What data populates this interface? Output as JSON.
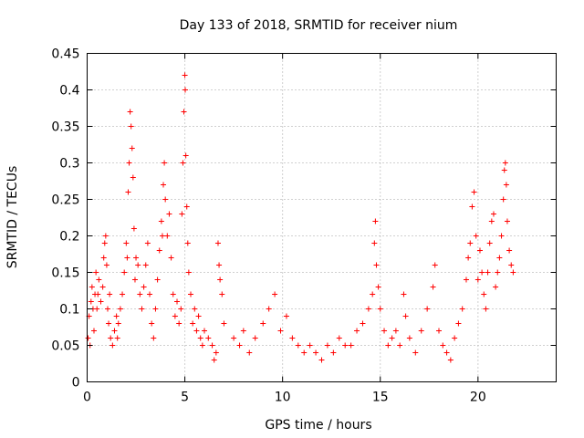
{
  "chart_data": {
    "type": "scatter",
    "title": "Day 133 of 2018, SRMTID for receiver nium",
    "xlabel": "GPS time / hours",
    "ylabel": "SRMTID / TECUs",
    "xlim": [
      0,
      24
    ],
    "ylim": [
      0,
      0.45
    ],
    "xticks": [
      0,
      5,
      10,
      15,
      20
    ],
    "xtick_labels": [
      "0",
      "5",
      "10",
      "15",
      "20"
    ],
    "yticks": [
      0,
      0.05,
      0.1,
      0.15,
      0.2,
      0.25,
      0.3,
      0.35,
      0.4,
      0.45
    ],
    "ytick_labels": [
      "0",
      "0.05",
      "0.1",
      "0.15",
      "0.2",
      "0.25",
      "0.3",
      "0.35",
      "0.4",
      "0.45"
    ],
    "grid": true,
    "marker": "+",
    "color": "#ff0000",
    "series": [
      {
        "name": "SRMTID",
        "points": [
          [
            0.05,
            0.06
          ],
          [
            0.1,
            0.09
          ],
          [
            0.15,
            0.05
          ],
          [
            0.2,
            0.11
          ],
          [
            0.25,
            0.13
          ],
          [
            0.3,
            0.1
          ],
          [
            0.35,
            0.07
          ],
          [
            0.4,
            0.12
          ],
          [
            0.45,
            0.15
          ],
          [
            0.5,
            0.1
          ],
          [
            0.55,
            0.12
          ],
          [
            0.6,
            0.14
          ],
          [
            0.7,
            0.11
          ],
          [
            0.8,
            0.13
          ],
          [
            0.85,
            0.17
          ],
          [
            0.9,
            0.19
          ],
          [
            0.95,
            0.2
          ],
          [
            1.0,
            0.16
          ],
          [
            1.05,
            0.1
          ],
          [
            1.1,
            0.08
          ],
          [
            1.15,
            0.12
          ],
          [
            1.2,
            0.06
          ],
          [
            1.3,
            0.05
          ],
          [
            1.4,
            0.07
          ],
          [
            1.5,
            0.09
          ],
          [
            1.55,
            0.06
          ],
          [
            1.6,
            0.08
          ],
          [
            1.7,
            0.1
          ],
          [
            1.8,
            0.12
          ],
          [
            1.9,
            0.15
          ],
          [
            2.0,
            0.19
          ],
          [
            2.05,
            0.17
          ],
          [
            2.1,
            0.26
          ],
          [
            2.15,
            0.3
          ],
          [
            2.2,
            0.37
          ],
          [
            2.25,
            0.35
          ],
          [
            2.3,
            0.32
          ],
          [
            2.35,
            0.28
          ],
          [
            2.4,
            0.21
          ],
          [
            2.45,
            0.14
          ],
          [
            2.5,
            0.17
          ],
          [
            2.6,
            0.16
          ],
          [
            2.7,
            0.12
          ],
          [
            2.8,
            0.1
          ],
          [
            2.9,
            0.13
          ],
          [
            3.0,
            0.16
          ],
          [
            3.1,
            0.19
          ],
          [
            3.2,
            0.12
          ],
          [
            3.3,
            0.08
          ],
          [
            3.4,
            0.06
          ],
          [
            3.5,
            0.1
          ],
          [
            3.6,
            0.14
          ],
          [
            3.7,
            0.18
          ],
          [
            3.8,
            0.22
          ],
          [
            3.85,
            0.2
          ],
          [
            3.9,
            0.27
          ],
          [
            3.95,
            0.3
          ],
          [
            4.0,
            0.25
          ],
          [
            4.1,
            0.2
          ],
          [
            4.2,
            0.23
          ],
          [
            4.3,
            0.17
          ],
          [
            4.4,
            0.12
          ],
          [
            4.5,
            0.09
          ],
          [
            4.6,
            0.11
          ],
          [
            4.7,
            0.08
          ],
          [
            4.8,
            0.1
          ],
          [
            4.85,
            0.23
          ],
          [
            4.9,
            0.3
          ],
          [
            4.95,
            0.37
          ],
          [
            5.0,
            0.42
          ],
          [
            5.02,
            0.4
          ],
          [
            5.05,
            0.31
          ],
          [
            5.1,
            0.24
          ],
          [
            5.15,
            0.19
          ],
          [
            5.2,
            0.15
          ],
          [
            5.3,
            0.12
          ],
          [
            5.4,
            0.08
          ],
          [
            5.5,
            0.1
          ],
          [
            5.6,
            0.07
          ],
          [
            5.7,
            0.09
          ],
          [
            5.8,
            0.06
          ],
          [
            5.9,
            0.05
          ],
          [
            6.0,
            0.07
          ],
          [
            6.2,
            0.06
          ],
          [
            6.4,
            0.05
          ],
          [
            6.5,
            0.03
          ],
          [
            6.6,
            0.04
          ],
          [
            6.7,
            0.19
          ],
          [
            6.75,
            0.16
          ],
          [
            6.8,
            0.14
          ],
          [
            6.9,
            0.12
          ],
          [
            7.0,
            0.08
          ],
          [
            7.5,
            0.06
          ],
          [
            7.8,
            0.05
          ],
          [
            8.0,
            0.07
          ],
          [
            8.3,
            0.04
          ],
          [
            8.6,
            0.06
          ],
          [
            9.0,
            0.08
          ],
          [
            9.3,
            0.1
          ],
          [
            9.6,
            0.12
          ],
          [
            9.9,
            0.07
          ],
          [
            10.2,
            0.09
          ],
          [
            10.5,
            0.06
          ],
          [
            10.8,
            0.05
          ],
          [
            11.1,
            0.04
          ],
          [
            11.4,
            0.05
          ],
          [
            11.7,
            0.04
          ],
          [
            12.0,
            0.03
          ],
          [
            12.3,
            0.05
          ],
          [
            12.6,
            0.04
          ],
          [
            12.9,
            0.06
          ],
          [
            13.2,
            0.05
          ],
          [
            13.5,
            0.05
          ],
          [
            13.8,
            0.07
          ],
          [
            14.1,
            0.08
          ],
          [
            14.4,
            0.1
          ],
          [
            14.6,
            0.12
          ],
          [
            14.7,
            0.19
          ],
          [
            14.75,
            0.22
          ],
          [
            14.8,
            0.16
          ],
          [
            14.9,
            0.13
          ],
          [
            15.0,
            0.1
          ],
          [
            15.2,
            0.07
          ],
          [
            15.4,
            0.05
          ],
          [
            15.6,
            0.06
          ],
          [
            15.8,
            0.07
          ],
          [
            16.0,
            0.05
          ],
          [
            16.2,
            0.12
          ],
          [
            16.3,
            0.09
          ],
          [
            16.5,
            0.06
          ],
          [
            16.8,
            0.04
          ],
          [
            17.1,
            0.07
          ],
          [
            17.4,
            0.1
          ],
          [
            17.7,
            0.13
          ],
          [
            17.8,
            0.16
          ],
          [
            18.0,
            0.07
          ],
          [
            18.2,
            0.05
          ],
          [
            18.4,
            0.04
          ],
          [
            18.6,
            0.03
          ],
          [
            18.8,
            0.06
          ],
          [
            19.0,
            0.08
          ],
          [
            19.2,
            0.1
          ],
          [
            19.4,
            0.14
          ],
          [
            19.5,
            0.17
          ],
          [
            19.6,
            0.19
          ],
          [
            19.7,
            0.24
          ],
          [
            19.8,
            0.26
          ],
          [
            19.9,
            0.2
          ],
          [
            20.0,
            0.14
          ],
          [
            20.1,
            0.18
          ],
          [
            20.2,
            0.15
          ],
          [
            20.3,
            0.12
          ],
          [
            20.4,
            0.1
          ],
          [
            20.5,
            0.15
          ],
          [
            20.6,
            0.19
          ],
          [
            20.7,
            0.22
          ],
          [
            20.8,
            0.23
          ],
          [
            20.9,
            0.13
          ],
          [
            21.0,
            0.15
          ],
          [
            21.1,
            0.17
          ],
          [
            21.2,
            0.2
          ],
          [
            21.3,
            0.25
          ],
          [
            21.35,
            0.29
          ],
          [
            21.4,
            0.3
          ],
          [
            21.45,
            0.27
          ],
          [
            21.5,
            0.22
          ],
          [
            21.6,
            0.18
          ],
          [
            21.7,
            0.16
          ],
          [
            21.8,
            0.15
          ]
        ]
      }
    ]
  }
}
